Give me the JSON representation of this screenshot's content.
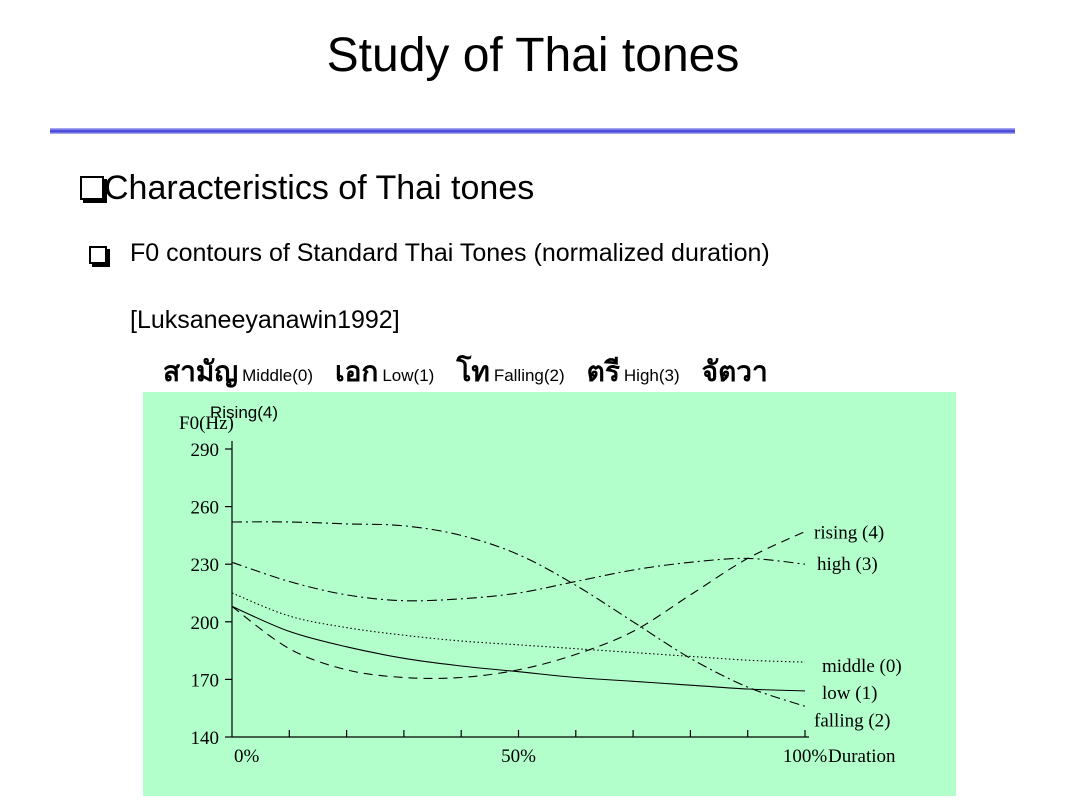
{
  "slide": {
    "title": "Study of Thai tones",
    "heading": "Characteristics of Thai tones",
    "subheading": "F0 contours of Standard Thai Tones (normalized duration)",
    "reference": "[Luksaneeyanawin1992]",
    "tone_names": [
      {
        "thai": "สามัญ",
        "english": "Middle(0)"
      },
      {
        "thai": "เอก",
        "english": "Low(1)"
      },
      {
        "thai": "โท",
        "english": "Falling(2)"
      },
      {
        "thai": "ตรี",
        "english": "High(3)"
      },
      {
        "thai": "จัตวา",
        "english": "Rising(4)"
      }
    ]
  },
  "colors": {
    "rule": "#4646d8",
    "chart_background": "#b3ffcc"
  },
  "chart_data": {
    "type": "line",
    "ylabel": "F0(Hz)",
    "xlabel": "Duration",
    "ylim": [
      140,
      290
    ],
    "yticks": [
      140,
      170,
      200,
      230,
      260,
      290
    ],
    "xlim": [
      0,
      100
    ],
    "xtick_labels": [
      {
        "value": 0,
        "label": "0%"
      },
      {
        "value": 50,
        "label": "50%"
      },
      {
        "value": 100,
        "label": "100%"
      }
    ],
    "grid": false,
    "legend": "curve labels at right end",
    "series": [
      {
        "name": "middle (0)",
        "style": "dotted",
        "x": [
          0,
          10,
          20,
          30,
          40,
          50,
          60,
          70,
          80,
          90,
          100
        ],
        "y": [
          215,
          203,
          197,
          193,
          190,
          188,
          186,
          184,
          182,
          180,
          179
        ]
      },
      {
        "name": "low (1)",
        "style": "solid",
        "x": [
          0,
          10,
          20,
          30,
          40,
          50,
          60,
          70,
          80,
          90,
          100
        ],
        "y": [
          208,
          195,
          187,
          181,
          177,
          174,
          171,
          169,
          167,
          165,
          164
        ]
      },
      {
        "name": "falling (2)",
        "style": "dashdot",
        "x": [
          0,
          10,
          20,
          30,
          40,
          50,
          60,
          70,
          80,
          90,
          100
        ],
        "y": [
          252,
          252,
          251,
          250,
          245,
          235,
          219,
          200,
          181,
          166,
          156
        ]
      },
      {
        "name": "high (3)",
        "style": "dashdot",
        "x": [
          0,
          10,
          20,
          30,
          40,
          50,
          60,
          70,
          80,
          90,
          100
        ],
        "y": [
          231,
          221,
          214,
          211,
          212,
          215,
          221,
          227,
          231,
          233,
          230
        ]
      },
      {
        "name": "rising (4)",
        "style": "dashed",
        "x": [
          0,
          10,
          20,
          30,
          40,
          50,
          60,
          70,
          80,
          90,
          100
        ],
        "y": [
          208,
          186,
          175,
          171,
          171,
          175,
          183,
          195,
          214,
          233,
          247
        ]
      }
    ]
  }
}
